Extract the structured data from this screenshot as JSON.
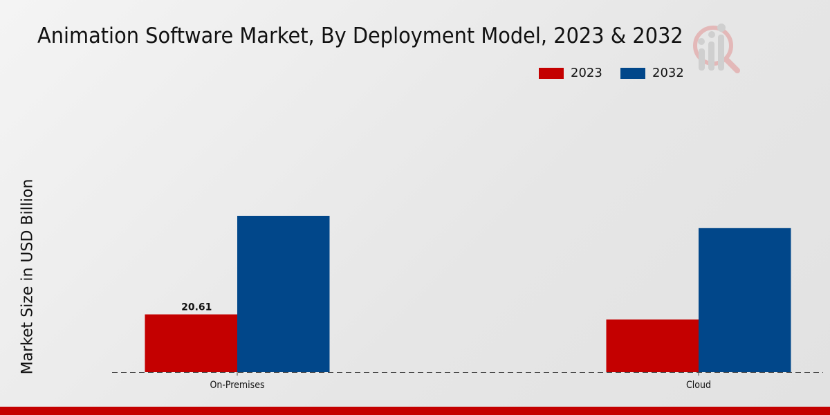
{
  "chart_data": {
    "type": "bar",
    "title": "Animation Software Market, By Deployment Model, 2023 & 2032",
    "xlabel": "",
    "ylabel": "Market Size in USD Billion",
    "categories": [
      "On-Premises",
      "Cloud"
    ],
    "series": [
      {
        "name": "2023",
        "color": "#c40000",
        "values": [
          20.61,
          18.8
        ]
      },
      {
        "name": "2032",
        "color": "#01478a",
        "values": [
          55.8,
          51.4
        ]
      }
    ],
    "data_labels": [
      {
        "series": "2023",
        "category": "On-Premises",
        "text": "20.61"
      }
    ],
    "ylim": [
      0,
      100
    ],
    "grid": false,
    "legend_placement": "top-right"
  }
}
